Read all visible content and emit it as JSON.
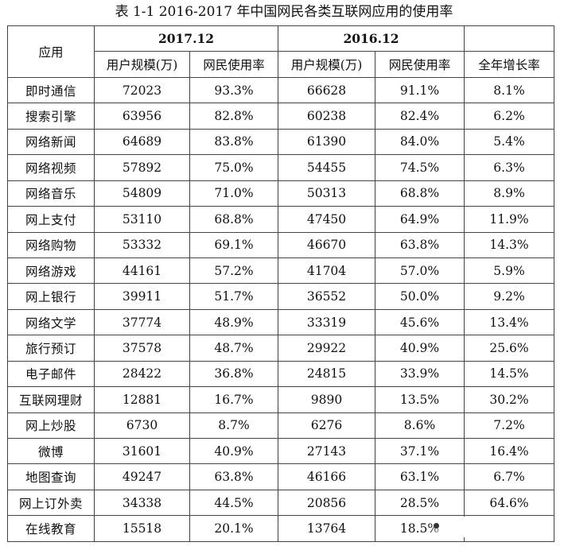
{
  "caption": "表 1-1 2016-2017 年中国网民各类互联网应用的使用率",
  "header": {
    "app_label": "应用",
    "period_2017": "2017.12",
    "period_2016": "2016.12",
    "users_label": "用户规模(万)",
    "rate_label": "网民使用率",
    "growth_label": "全年增长率"
  },
  "rows": [
    {
      "app": "即时通信",
      "users_2017": "72023",
      "rate_2017": "93.3%",
      "users_2016": "66628",
      "rate_2016": "91.1%",
      "growth": "8.1%"
    },
    {
      "app": "搜索引擎",
      "users_2017": "63956",
      "rate_2017": "82.8%",
      "users_2016": "60238",
      "rate_2016": "82.4%",
      "growth": "6.2%"
    },
    {
      "app": "网络新闻",
      "users_2017": "64689",
      "rate_2017": "83.8%",
      "users_2016": "61390",
      "rate_2016": "84.0%",
      "growth": "5.4%"
    },
    {
      "app": "网络视频",
      "users_2017": "57892",
      "rate_2017": "75.0%",
      "users_2016": "54455",
      "rate_2016": "74.5%",
      "growth": "6.3%"
    },
    {
      "app": "网络音乐",
      "users_2017": "54809",
      "rate_2017": "71.0%",
      "users_2016": "50313",
      "rate_2016": "68.8%",
      "growth": "8.9%"
    },
    {
      "app": "网上支付",
      "users_2017": "53110",
      "rate_2017": "68.8%",
      "users_2016": "47450",
      "rate_2016": "64.9%",
      "growth": "11.9%"
    },
    {
      "app": "网络购物",
      "users_2017": "53332",
      "rate_2017": "69.1%",
      "users_2016": "46670",
      "rate_2016": "63.8%",
      "growth": "14.3%"
    },
    {
      "app": "网络游戏",
      "users_2017": "44161",
      "rate_2017": "57.2%",
      "users_2016": "41704",
      "rate_2016": "57.0%",
      "growth": "5.9%"
    },
    {
      "app": "网上银行",
      "users_2017": "39911",
      "rate_2017": "51.7%",
      "users_2016": "36552",
      "rate_2016": "50.0%",
      "growth": "9.2%"
    },
    {
      "app": "网络文学",
      "users_2017": "37774",
      "rate_2017": "48.9%",
      "users_2016": "33319",
      "rate_2016": "45.6%",
      "growth": "13.4%"
    },
    {
      "app": "旅行预订",
      "users_2017": "37578",
      "rate_2017": "48.7%",
      "users_2016": "29922",
      "rate_2016": "40.9%",
      "growth": "25.6%"
    },
    {
      "app": "电子邮件",
      "users_2017": "28422",
      "rate_2017": "36.8%",
      "users_2016": "24815",
      "rate_2016": "33.9%",
      "growth": "14.5%"
    },
    {
      "app": "互联网理财",
      "users_2017": "12881",
      "rate_2017": "16.7%",
      "users_2016": "9890",
      "rate_2016": "13.5%",
      "growth": "30.2%"
    },
    {
      "app": "网上炒股",
      "users_2017": "6730",
      "rate_2017": "8.7%",
      "users_2016": "6276",
      "rate_2016": "8.6%",
      "growth": "7.2%"
    },
    {
      "app": "微博",
      "users_2017": "31601",
      "rate_2017": "40.9%",
      "users_2016": "27143",
      "rate_2016": "37.1%",
      "growth": "16.4%"
    },
    {
      "app": "地图查询",
      "users_2017": "49247",
      "rate_2017": "63.8%",
      "users_2016": "46166",
      "rate_2016": "63.1%",
      "growth": "6.7%"
    },
    {
      "app": "网上订外卖",
      "users_2017": "34338",
      "rate_2017": "44.5%",
      "users_2016": "20856",
      "rate_2016": "28.5%",
      "growth": "64.6%"
    },
    {
      "app": "在线教育",
      "users_2017": "15518",
      "rate_2017": "20.1%",
      "users_2016": "13764",
      "rate_2016": "18.5%",
      "growth": ""
    }
  ]
}
